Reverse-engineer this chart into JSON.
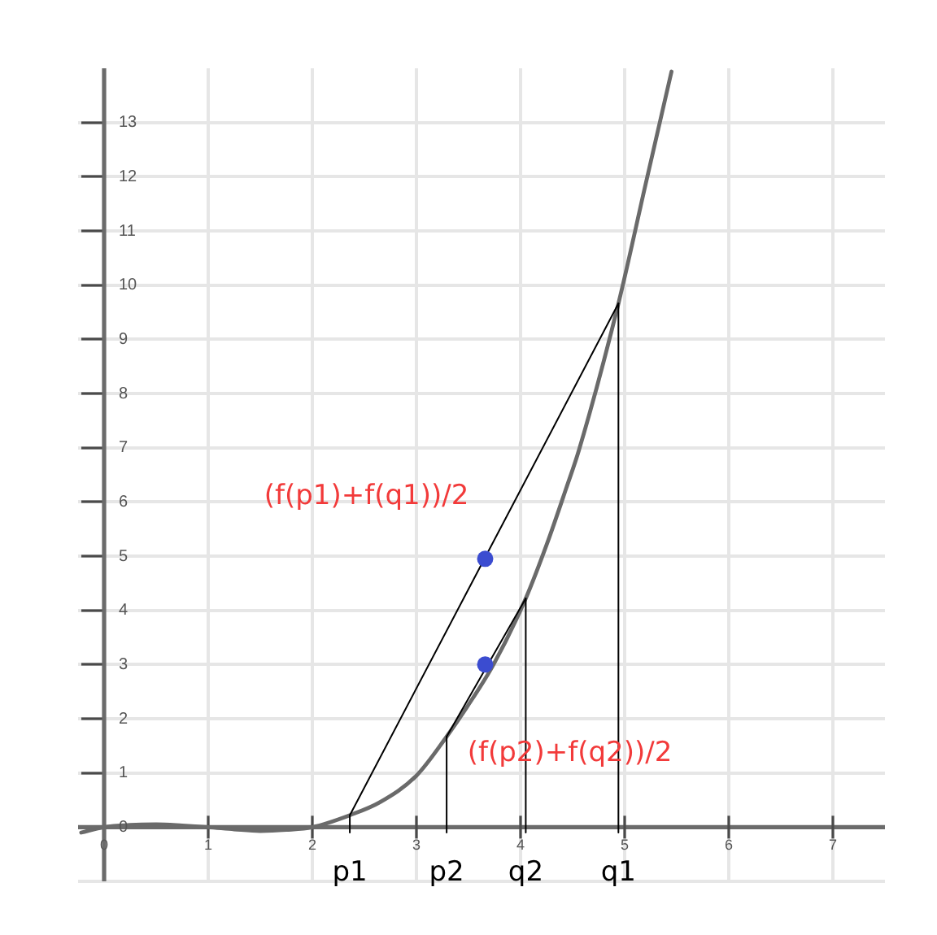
{
  "chart_data": {
    "type": "line",
    "xlim": [
      -0.25,
      7.5
    ],
    "xticks": [
      0,
      1,
      2,
      3,
      4,
      5,
      6,
      7
    ],
    "ylim": [
      -1,
      14
    ],
    "yticks": [
      {
        "value": -1,
        "label": null
      },
      0,
      1,
      2,
      3,
      4,
      5,
      6,
      7,
      8,
      9,
      10,
      11,
      12,
      13
    ],
    "grid": true,
    "series": [
      {
        "color": "#6a6a6a",
        "x": [
          -0.22,
          0,
          0.25,
          0.5,
          0.75,
          1,
          1.25,
          1.5,
          1.75,
          2,
          2.36,
          2.65,
          3,
          3.29,
          3.48,
          3.74,
          4.05,
          4.26,
          4.44,
          4.56,
          4.94,
          5.2,
          5.45
        ],
        "values": [
          -0.1,
          0,
          0.04,
          0.05,
          0.03,
          0,
          -0.04,
          -0.07,
          -0.05,
          0,
          0.22,
          0.46,
          0.95,
          1.67,
          2.2,
          3.0,
          4.22,
          5.26,
          6.26,
          6.95,
          9.66,
          11.85,
          13.94
        ]
      },
      {
        "color": "#000000",
        "x": [
          2.36,
          4.94
        ],
        "values": [
          0.22,
          9.66
        ]
      },
      {
        "color": "#000000",
        "x": [
          3.29,
          4.05
        ],
        "values": [
          1.67,
          4.22
        ]
      },
      {
        "color": "#000000",
        "x": [
          2.36,
          2.36
        ],
        "values": [
          -0.1,
          0.22
        ]
      },
      {
        "color": "#000000",
        "x": [
          3.29,
          3.29
        ],
        "values": [
          -0.1,
          1.67
        ]
      },
      {
        "color": "#000000",
        "x": [
          4.05,
          4.05
        ],
        "values": [
          -0.1,
          4.22
        ]
      },
      {
        "color": "#000000",
        "x": [
          4.94,
          4.94
        ],
        "values": [
          -0.1,
          9.66
        ]
      },
      {
        "type": "scatter",
        "marker": "circle",
        "color": "#3b4cd0",
        "x": [
          3.66,
          3.66
        ],
        "values": [
          4.95,
          3.0
        ]
      }
    ],
    "annotations": [
      {
        "text": "(f(p1)+f(q1))/2",
        "x": 3.66,
        "y": 4.95
      },
      {
        "text": "(f(p2)+f(q2))/2",
        "x": 3.66,
        "y": 3.0
      },
      {
        "text": "p1",
        "x": 2.36,
        "y": -0.1
      },
      {
        "text": "p2",
        "x": 3.29,
        "y": -0.1
      },
      {
        "text": "q2",
        "x": 4.05,
        "y": -0.1
      },
      {
        "text": "q1",
        "x": 4.94,
        "y": -0.1
      }
    ]
  }
}
